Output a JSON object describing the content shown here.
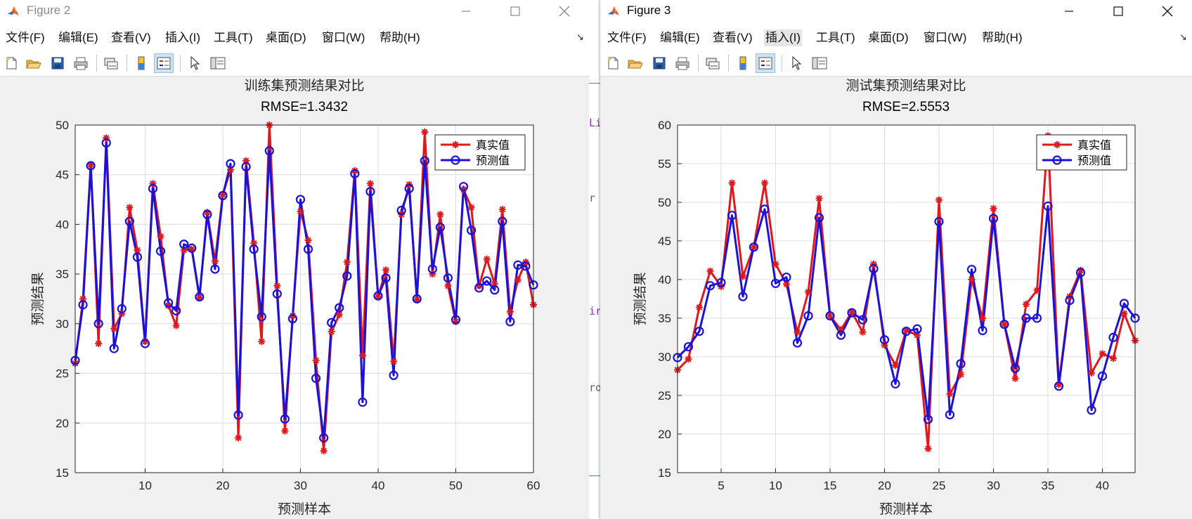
{
  "windows": [
    {
      "id": "figure2",
      "title": "Figure 2",
      "active": false,
      "menus": [
        "文件(F)",
        "编辑(E)",
        "查看(V)",
        "插入(I)",
        "工具(T)",
        "桌面(D)",
        "窗口(W)",
        "帮助(H)"
      ],
      "toolbar_icons": [
        "new-figure-icon",
        "open-file-icon",
        "save-icon",
        "print-icon",
        "link-plot-icon",
        "colorbar-icon",
        "legend-icon",
        "pointer-icon",
        "property-inspector-icon"
      ]
    },
    {
      "id": "figure3",
      "title": "Figure 3",
      "active": true,
      "menus": [
        "文件(F)",
        "编辑(E)",
        "查看(V)",
        "插入(I)",
        "工具(T)",
        "桌面(D)",
        "窗口(W)",
        "帮助(H)"
      ],
      "toolbar_icons": [
        "new-figure-icon",
        "open-file-icon",
        "save-icon",
        "print-icon",
        "link-plot-icon",
        "colorbar-icon",
        "legend-icon",
        "pointer-icon",
        "property-inspector-icon"
      ]
    }
  ],
  "background_code_fragments": [
    "Li",
    "r",
    "ir",
    "ro"
  ],
  "chart_data": [
    {
      "type": "line",
      "title": "训练集预测结果对比",
      "subtitle": "RMSE=1.3432",
      "xlabel": "预测样本",
      "ylabel": "预测结果",
      "xlim": [
        1,
        60
      ],
      "ylim": [
        15,
        50
      ],
      "xticks": [
        10,
        20,
        30,
        40,
        50,
        60
      ],
      "yticks": [
        15,
        20,
        25,
        30,
        35,
        40,
        45,
        50
      ],
      "grid": true,
      "legend_position": "top-right",
      "series": [
        {
          "name": "真实值",
          "color": "#e0181c",
          "marker": "asterisk",
          "values": [
            26.0,
            32.5,
            46.0,
            28.0,
            48.7,
            29.5,
            31.0,
            41.7,
            37.4,
            28.2,
            44.1,
            38.8,
            31.8,
            29.8,
            37.4,
            37.5,
            32.6,
            41.2,
            36.3,
            43.0,
            45.5,
            18.5,
            46.4,
            38.1,
            28.2,
            50.0,
            33.8,
            19.2,
            30.8,
            41.3,
            38.4,
            26.3,
            17.2,
            29.2,
            30.9,
            36.2,
            45.4,
            26.8,
            44.1,
            32.7,
            35.4,
            26.2,
            41.0,
            44.0,
            32.4,
            49.3,
            35.0,
            41.0,
            33.8,
            30.2,
            43.5,
            41.7,
            33.8,
            36.5,
            34.0,
            41.5,
            31.2,
            34.4,
            36.2,
            31.9
          ]
        },
        {
          "name": "预测值",
          "color": "#1a12d8",
          "marker": "circle",
          "values": [
            26.3,
            31.9,
            45.9,
            30.0,
            48.2,
            27.5,
            31.5,
            40.3,
            36.7,
            28.0,
            43.6,
            37.3,
            32.1,
            31.3,
            38.0,
            37.6,
            32.7,
            41.0,
            35.5,
            42.9,
            46.1,
            20.8,
            45.8,
            37.5,
            30.7,
            47.4,
            33.0,
            20.4,
            30.5,
            42.5,
            37.5,
            24.5,
            18.5,
            30.1,
            31.6,
            34.8,
            45.1,
            22.1,
            43.3,
            32.8,
            34.6,
            24.8,
            41.4,
            43.6,
            32.5,
            46.4,
            35.5,
            39.7,
            34.6,
            30.4,
            43.8,
            39.4,
            33.6,
            34.3,
            33.4,
            40.3,
            30.2,
            35.9,
            35.8,
            33.9
          ]
        }
      ]
    },
    {
      "type": "line",
      "title": "测试集预测结果对比",
      "subtitle": "RMSE=2.5553",
      "xlabel": "预测样本",
      "ylabel": "预测结果",
      "xlim": [
        1,
        43
      ],
      "ylim": [
        15,
        60
      ],
      "xticks": [
        5,
        10,
        15,
        20,
        25,
        30,
        35,
        40
      ],
      "yticks": [
        15,
        20,
        25,
        30,
        35,
        40,
        45,
        50,
        55,
        60
      ],
      "grid": true,
      "legend_position": "top-right",
      "series": [
        {
          "name": "真实值",
          "color": "#e0181c",
          "marker": "asterisk",
          "values": [
            28.3,
            29.7,
            36.4,
            41.1,
            39.1,
            52.5,
            40.4,
            44.2,
            52.5,
            42.0,
            39.4,
            33.2,
            38.4,
            50.5,
            35.3,
            33.5,
            35.8,
            33.2,
            42.0,
            31.5,
            28.9,
            33.4,
            32.8,
            18.1,
            50.3,
            25.2,
            27.7,
            40.0,
            35.0,
            49.2,
            34.2,
            27.2,
            36.8,
            38.6,
            58.6,
            26.4,
            37.8,
            41.2,
            27.9,
            30.4,
            29.8,
            35.6,
            32.1
          ]
        },
        {
          "name": "预测值",
          "color": "#1a12d8",
          "marker": "circle",
          "values": [
            29.9,
            31.3,
            33.3,
            39.2,
            39.6,
            48.3,
            37.8,
            44.2,
            49.1,
            39.5,
            40.3,
            31.8,
            35.3,
            48.0,
            35.3,
            32.8,
            35.7,
            34.8,
            41.4,
            32.2,
            26.5,
            33.3,
            33.6,
            21.9,
            47.5,
            22.5,
            29.1,
            41.3,
            33.4,
            47.9,
            34.2,
            28.5,
            35.0,
            35.0,
            49.5,
            26.2,
            37.3,
            40.9,
            23.1,
            27.5,
            32.5,
            36.9,
            35.0
          ]
        }
      ]
    }
  ]
}
